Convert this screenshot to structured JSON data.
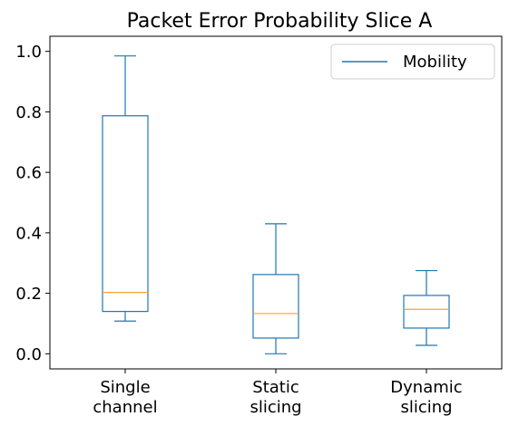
{
  "chart_data": {
    "type": "box",
    "title": "Packet Error Probability Slice A",
    "categories": [
      [
        "Single",
        "channel"
      ],
      [
        "Static",
        "slicing"
      ],
      [
        "Dynamic",
        "slicing"
      ]
    ],
    "series": [
      {
        "name": "Mobility",
        "boxes": [
          {
            "whisker_low": 0.108,
            "q1": 0.14,
            "median": 0.203,
            "q3": 0.787,
            "whisker_high": 0.985
          },
          {
            "whisker_low": 0.0,
            "q1": 0.052,
            "median": 0.133,
            "q3": 0.262,
            "whisker_high": 0.43
          },
          {
            "whisker_low": 0.028,
            "q1": 0.085,
            "median": 0.147,
            "q3": 0.193,
            "whisker_high": 0.275
          }
        ]
      }
    ],
    "ylim": [
      -0.05,
      1.05
    ],
    "yticks": [
      0.0,
      0.2,
      0.4,
      0.6,
      0.8,
      1.0
    ],
    "ytick_labels": [
      "0.0",
      "0.2",
      "0.4",
      "0.6",
      "0.8",
      "1.0"
    ],
    "xlabel": "",
    "ylabel": "",
    "grid": false,
    "legend": {
      "position": "top-right",
      "label": "Mobility"
    },
    "colors": {
      "box": "#1f77b4",
      "median": "#ff9f32"
    }
  }
}
